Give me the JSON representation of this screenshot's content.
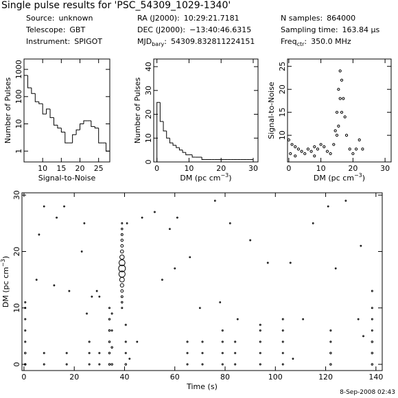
{
  "header": {
    "title": "Single pulse results for 'PSC_54309_1029-1340'",
    "columns": [
      [
        {
          "label": "Source:",
          "value": "unknown"
        },
        {
          "label": "Telescope:",
          "value": "GBT"
        },
        {
          "label": "Instrument:",
          "value": "SPIGOT"
        }
      ],
      [
        {
          "label": "RA (J2000):",
          "value": "10:29:21.7181"
        },
        {
          "label": "DEC (J2000):",
          "value": "−13:40:46.6315"
        },
        {
          "label": "MJD",
          "sub": "bary",
          "label_end": ":",
          "value": "54309.832811224151"
        }
      ],
      [
        {
          "label": "N samples:",
          "value": "864000"
        },
        {
          "label": "Sampling time:",
          "value": "163.84 μs"
        },
        {
          "label": "Freq",
          "sub": "ctr",
          "label_end": ":",
          "value": "350.0 MHz"
        }
      ]
    ]
  },
  "footer": "8-Sep-2008 02:43",
  "chart_data": [
    {
      "type": "histogram",
      "xlabel": "Signal-to-Noise",
      "ylabel": "Number of Pulses",
      "color": "#000000",
      "log_y": true,
      "bins": [
        5,
        6,
        7,
        8,
        9,
        10,
        11,
        12,
        13,
        14,
        15,
        16,
        17,
        18,
        19,
        20,
        21,
        22,
        23,
        24,
        25,
        26,
        27,
        28
      ],
      "values": [
        600,
        210,
        130,
        65,
        55,
        23,
        35,
        17,
        9,
        7,
        5,
        2,
        2,
        4,
        6,
        10,
        13,
        13,
        8,
        7,
        2,
        2,
        1
      ],
      "xlim": [
        5,
        28
      ],
      "ylim": [
        0.4,
        2400
      ],
      "xticks": [
        10,
        15,
        20,
        25
      ],
      "yticks": [
        1,
        10,
        100,
        1000
      ]
    },
    {
      "type": "histogram",
      "xlabel": {
        "text": "DM (pc cm",
        "sup": "−3",
        "end": ")"
      },
      "ylabel": "Number of Pulses",
      "color": "#000000",
      "log_y": false,
      "bins": [
        0,
        1,
        2,
        3,
        4,
        5,
        6,
        7,
        8,
        9,
        10,
        11,
        12,
        13,
        14,
        15,
        16,
        17,
        18,
        19,
        20,
        21,
        22,
        23,
        24,
        25,
        26,
        27,
        28,
        29,
        30
      ],
      "values": [
        25,
        17,
        13,
        10,
        8,
        7,
        6,
        5,
        4,
        3,
        3,
        2,
        2,
        2,
        1,
        1,
        1,
        1,
        1,
        1,
        1,
        1,
        1,
        1,
        1,
        1,
        1,
        1,
        1,
        1
      ],
      "xlim": [
        -1,
        31.5
      ],
      "ylim": [
        0,
        43.2
      ],
      "xticks": [
        0,
        10,
        20,
        30
      ],
      "yticks": [
        0,
        10,
        20,
        30,
        40
      ]
    },
    {
      "type": "scatter",
      "xlabel": {
        "text": "DM (pc cm",
        "sup": "−3",
        "end": ")"
      },
      "ylabel": "Signal-to-Noise",
      "color": "#000000",
      "x": [
        13,
        14,
        14.5,
        15,
        15.5,
        16,
        16.5,
        17,
        17.5,
        18,
        19,
        20,
        21,
        22,
        23,
        0,
        1,
        2,
        3,
        4,
        5,
        6,
        7,
        8,
        9,
        10,
        11,
        12,
        0.5,
        2,
        8,
        15.5,
        16,
        16.5,
        15
      ],
      "y": [
        6,
        8,
        11,
        15,
        20,
        24,
        22,
        18,
        14,
        10,
        7,
        6,
        7,
        9,
        7,
        9,
        8,
        7.5,
        7,
        6.5,
        6,
        7,
        6.5,
        7.5,
        7,
        8,
        7.5,
        6.5,
        6,
        5.5,
        5.5,
        12,
        18,
        15,
        10
      ],
      "xlim": [
        -0.4,
        31.9
      ],
      "ylim": [
        4.2,
        26.6
      ],
      "xticks": [
        0,
        10,
        20,
        30
      ],
      "yticks": [
        10,
        15,
        20,
        25
      ]
    },
    {
      "type": "bubble",
      "xlabel": "Time (s)",
      "ylabel": {
        "text": "DM (pc cm",
        "sup": "−3",
        "end": ")"
      },
      "color": "#000000",
      "x": [
        0.5,
        0.5,
        0.5,
        0.5,
        0.5,
        0.5,
        0.5,
        8,
        8,
        17,
        17,
        26,
        26,
        26,
        30,
        30,
        34,
        34,
        34,
        34,
        34,
        34,
        35,
        35,
        35,
        35,
        39,
        39,
        39,
        39,
        39,
        39,
        39,
        39,
        39,
        39,
        39,
        39,
        39,
        39,
        39,
        39,
        40.5,
        40.5,
        40.5,
        40.5,
        65,
        65,
        65,
        71,
        71,
        71,
        79,
        79,
        79,
        79,
        84,
        84,
        84,
        94,
        94,
        94,
        94,
        94,
        103,
        103,
        103,
        103,
        103,
        122,
        122,
        122,
        122,
        138.5,
        138.5,
        138.5,
        138.5,
        138.5,
        138.5,
        138.5,
        8,
        16,
        24,
        13,
        23,
        27,
        30,
        6,
        5,
        29,
        52,
        47,
        41,
        76,
        61,
        82,
        115,
        121,
        128,
        134,
        106,
        78,
        66,
        58,
        25,
        70,
        97,
        55,
        12,
        60,
        90,
        18,
        111,
        124,
        135,
        133,
        107,
        85,
        42,
        45
      ],
      "y": [
        0,
        2,
        4,
        6,
        8,
        10,
        11,
        0,
        2,
        0,
        2,
        0,
        2,
        4,
        0,
        2,
        0,
        2,
        4,
        6,
        8,
        10,
        0,
        3,
        6,
        9,
        10,
        11,
        12,
        13,
        14,
        15,
        16,
        17,
        18,
        19,
        20,
        21,
        22,
        23,
        24,
        25,
        0,
        2,
        4,
        7,
        0,
        2,
        4,
        0,
        2,
        4,
        0,
        2,
        4,
        6,
        0,
        2,
        4,
        0,
        2,
        4,
        6,
        7,
        0,
        2,
        4,
        6,
        8,
        0,
        2,
        4,
        6,
        0,
        2,
        4,
        6,
        8,
        10,
        13,
        28,
        28,
        25,
        26,
        20,
        12,
        12,
        23,
        15,
        13,
        27,
        26,
        25,
        29,
        26,
        25,
        25,
        28,
        29,
        21,
        18,
        11,
        19,
        24,
        9,
        10,
        18,
        15,
        14,
        17,
        22,
        13,
        8,
        17,
        5,
        8,
        1,
        8,
        1,
        4
      ],
      "sizes": [
        7,
        7,
        6,
        6,
        6,
        6,
        6,
        6,
        6,
        6,
        6,
        6,
        6,
        6,
        6,
        6,
        7,
        7,
        7,
        7,
        7,
        6,
        7,
        7,
        6,
        6,
        6,
        7,
        8,
        10,
        13,
        17,
        22,
        24,
        21,
        16,
        12,
        10,
        9,
        8,
        7,
        6,
        7,
        6,
        6,
        6,
        6,
        6,
        6,
        6,
        6,
        6,
        6,
        6,
        6,
        6,
        6,
        6,
        6,
        6,
        6,
        6,
        6,
        6,
        6,
        6,
        6,
        6,
        6,
        7,
        7,
        6,
        6,
        7,
        7,
        7,
        6,
        6,
        6,
        6,
        5.5,
        5.5,
        5.5,
        5.5,
        5.5,
        5.5,
        5.5,
        5.5,
        5.5,
        5.5,
        5.5,
        5.5,
        5.5,
        5.5,
        5.5,
        5.5,
        5.5,
        5.5,
        5.5,
        5.5,
        5.5,
        5.5,
        5.5,
        5.5,
        5.5,
        5.5,
        5.5,
        5.5,
        5.5,
        5.5,
        5.5,
        5.5,
        5.5,
        5.5,
        5.5,
        5.5,
        5.5,
        5.5,
        5.5,
        5.5
      ],
      "xlim": [
        -0.8,
        142.5
      ],
      "ylim": [
        -1.1,
        30.4
      ],
      "xticks": [
        0,
        20,
        40,
        60,
        80,
        100,
        120,
        140
      ],
      "yticks": [
        0,
        10,
        20,
        30
      ]
    }
  ]
}
